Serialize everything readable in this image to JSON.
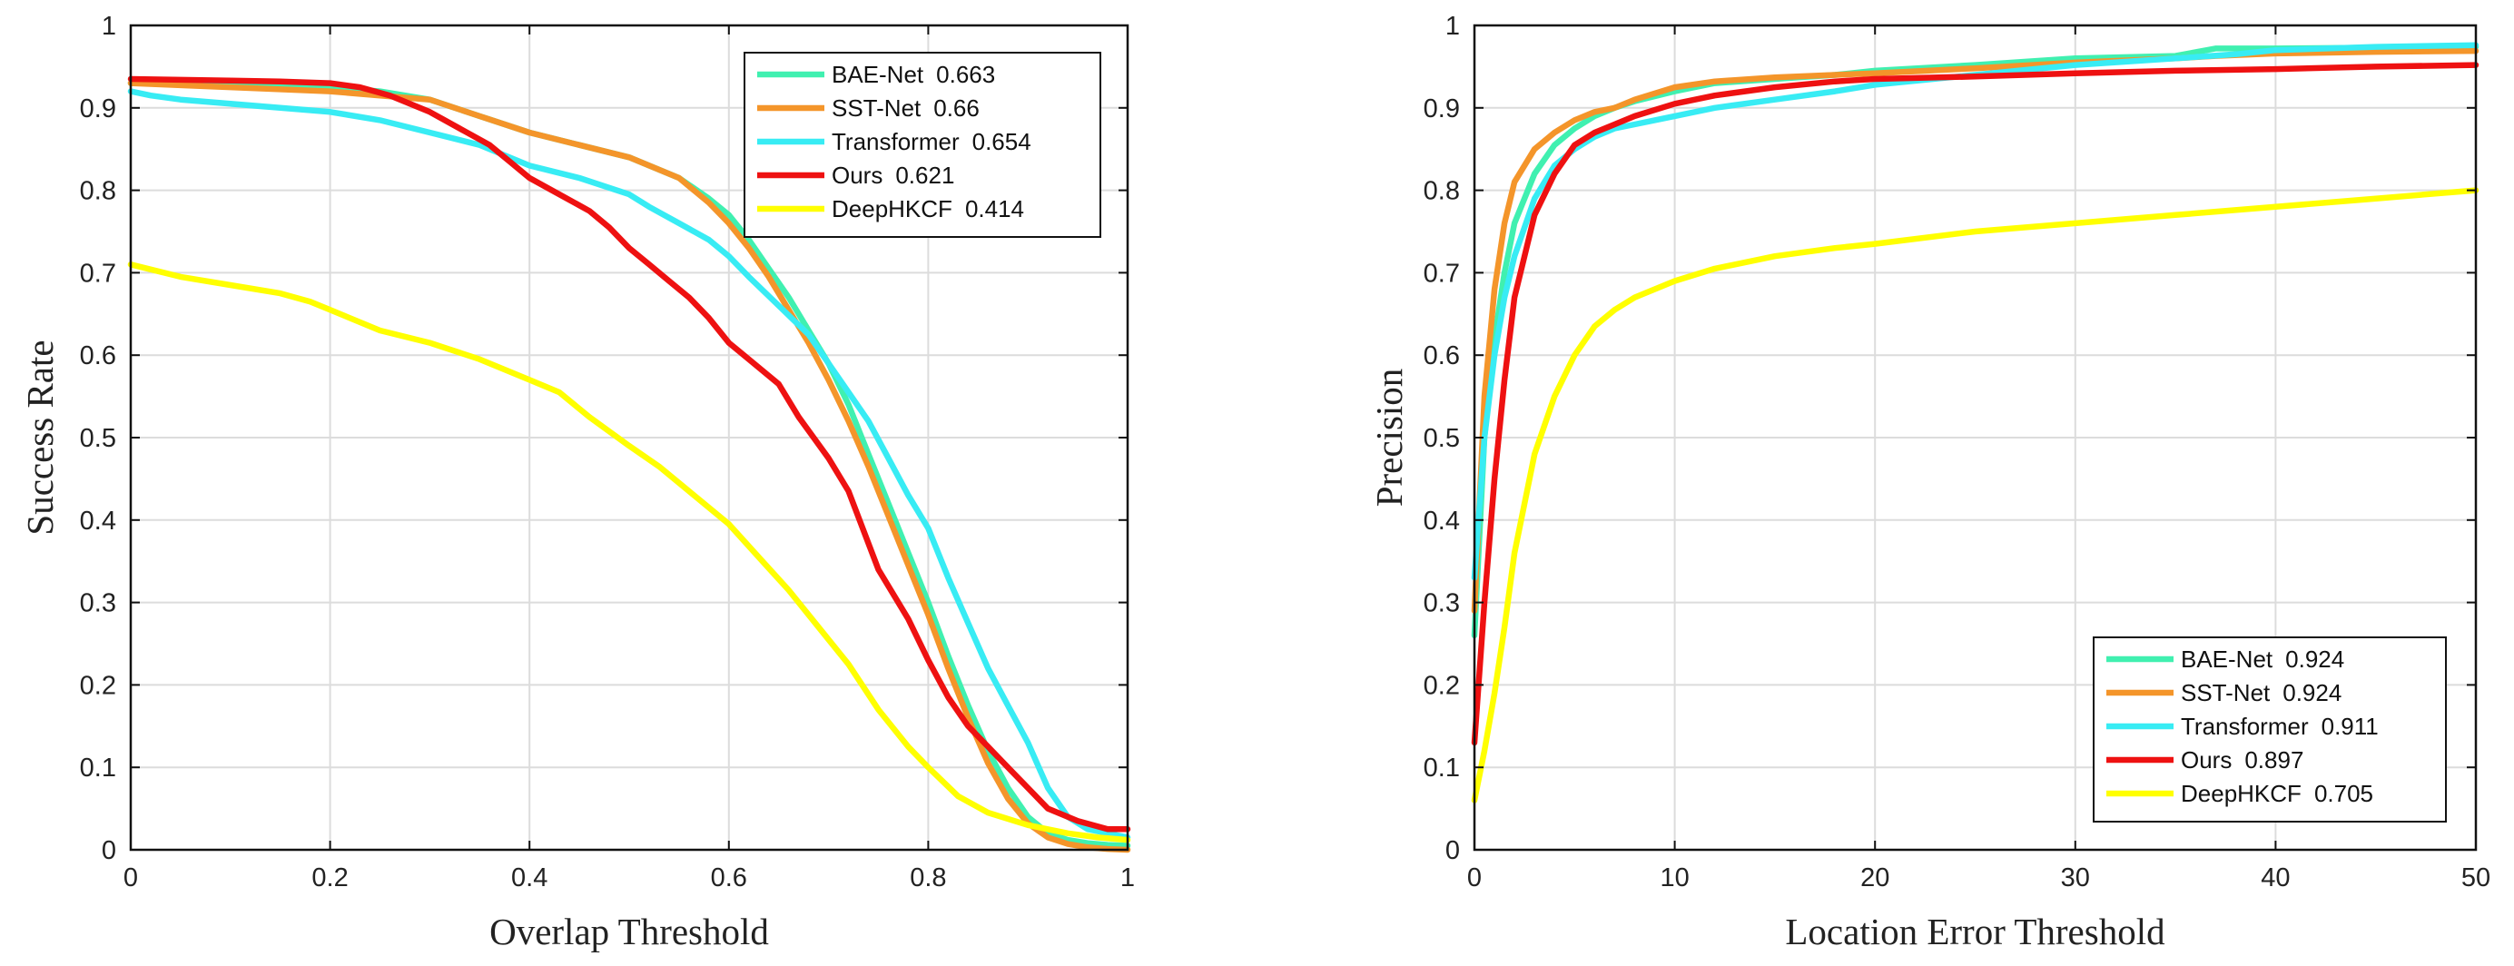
{
  "chart_data": [
    {
      "type": "line",
      "title": "",
      "xlabel": "Overlap Threshold",
      "ylabel": "Success Rate",
      "xlim": [
        0,
        1
      ],
      "ylim": [
        0,
        1
      ],
      "xticks": [
        0,
        0.2,
        0.4,
        0.6,
        0.8,
        1
      ],
      "xtick_labels": [
        "0",
        "0.2",
        "0.4",
        "0.6",
        "0.8",
        "1"
      ],
      "yticks": [
        0,
        0.1,
        0.2,
        0.3,
        0.4,
        0.5,
        0.6,
        0.7,
        0.8,
        0.9,
        1
      ],
      "ytick_labels": [
        "0",
        "0.1",
        "0.2",
        "0.3",
        "0.4",
        "0.5",
        "0.6",
        "0.7",
        "0.8",
        "0.9",
        "1"
      ],
      "grid": true,
      "legend_position": "top-right",
      "series": [
        {
          "name": "BAE-Net",
          "score": "0.663",
          "color": "#40f0b0",
          "x": [
            0,
            0.1,
            0.2,
            0.25,
            0.3,
            0.35,
            0.4,
            0.45,
            0.5,
            0.55,
            0.58,
            0.6,
            0.62,
            0.64,
            0.66,
            0.68,
            0.7,
            0.72,
            0.74,
            0.76,
            0.78,
            0.8,
            0.82,
            0.84,
            0.86,
            0.88,
            0.9,
            0.92,
            0.94,
            0.96,
            0.98,
            1
          ],
          "y": [
            0.93,
            0.93,
            0.925,
            0.92,
            0.91,
            0.89,
            0.87,
            0.855,
            0.84,
            0.815,
            0.79,
            0.77,
            0.74,
            0.705,
            0.67,
            0.63,
            0.59,
            0.54,
            0.48,
            0.42,
            0.36,
            0.3,
            0.235,
            0.175,
            0.12,
            0.075,
            0.04,
            0.02,
            0.012,
            0.008,
            0.006,
            0.005
          ]
        },
        {
          "name": "SST-Net",
          "score": "0.66",
          "color": "#f4952a",
          "x": [
            0,
            0.1,
            0.2,
            0.25,
            0.3,
            0.35,
            0.4,
            0.45,
            0.5,
            0.55,
            0.58,
            0.6,
            0.62,
            0.64,
            0.66,
            0.68,
            0.7,
            0.72,
            0.74,
            0.76,
            0.78,
            0.8,
            0.82,
            0.84,
            0.86,
            0.88,
            0.9,
            0.92,
            0.94,
            0.96,
            0.98,
            1
          ],
          "y": [
            0.93,
            0.925,
            0.92,
            0.915,
            0.91,
            0.89,
            0.87,
            0.855,
            0.84,
            0.815,
            0.785,
            0.76,
            0.73,
            0.695,
            0.655,
            0.615,
            0.57,
            0.52,
            0.465,
            0.405,
            0.345,
            0.285,
            0.22,
            0.16,
            0.105,
            0.062,
            0.032,
            0.015,
            0.007,
            0.003,
            0.001,
            0
          ]
        },
        {
          "name": "Transformer",
          "score": "0.654",
          "color": "#38ecf4",
          "x": [
            0,
            0.02,
            0.05,
            0.1,
            0.15,
            0.2,
            0.25,
            0.3,
            0.35,
            0.4,
            0.45,
            0.5,
            0.52,
            0.55,
            0.58,
            0.6,
            0.62,
            0.65,
            0.68,
            0.7,
            0.72,
            0.74,
            0.76,
            0.78,
            0.8,
            0.82,
            0.84,
            0.86,
            0.88,
            0.9,
            0.92,
            0.94,
            0.96,
            0.98,
            1
          ],
          "y": [
            0.92,
            0.915,
            0.91,
            0.905,
            0.9,
            0.895,
            0.885,
            0.87,
            0.855,
            0.83,
            0.815,
            0.795,
            0.78,
            0.76,
            0.74,
            0.72,
            0.695,
            0.66,
            0.625,
            0.59,
            0.555,
            0.52,
            0.475,
            0.43,
            0.39,
            0.33,
            0.275,
            0.22,
            0.175,
            0.13,
            0.075,
            0.04,
            0.025,
            0.02,
            0.015
          ]
        },
        {
          "name": "Ours",
          "score": "0.621",
          "color": "#ee1111",
          "x": [
            0,
            0.1,
            0.15,
            0.2,
            0.23,
            0.26,
            0.3,
            0.33,
            0.36,
            0.38,
            0.4,
            0.43,
            0.46,
            0.48,
            0.5,
            0.52,
            0.54,
            0.56,
            0.58,
            0.6,
            0.62,
            0.65,
            0.67,
            0.7,
            0.72,
            0.75,
            0.78,
            0.8,
            0.82,
            0.84,
            0.86,
            0.88,
            0.9,
            0.92,
            0.95,
            0.98,
            1
          ],
          "y": [
            0.935,
            0.933,
            0.932,
            0.93,
            0.925,
            0.915,
            0.895,
            0.875,
            0.855,
            0.835,
            0.815,
            0.795,
            0.775,
            0.755,
            0.73,
            0.71,
            0.69,
            0.67,
            0.645,
            0.615,
            0.595,
            0.565,
            0.525,
            0.475,
            0.435,
            0.34,
            0.28,
            0.23,
            0.185,
            0.15,
            0.125,
            0.1,
            0.075,
            0.05,
            0.035,
            0.025,
            0.025
          ]
        },
        {
          "name": "DeepHKCF",
          "score": "0.414",
          "color": "#ffff00",
          "x": [
            0,
            0.05,
            0.1,
            0.15,
            0.18,
            0.2,
            0.25,
            0.3,
            0.35,
            0.4,
            0.43,
            0.46,
            0.5,
            0.53,
            0.56,
            0.6,
            0.63,
            0.66,
            0.69,
            0.72,
            0.75,
            0.78,
            0.8,
            0.83,
            0.86,
            0.9,
            0.94,
            0.97,
            1
          ],
          "y": [
            0.71,
            0.695,
            0.685,
            0.675,
            0.665,
            0.655,
            0.63,
            0.615,
            0.595,
            0.57,
            0.555,
            0.525,
            0.49,
            0.465,
            0.435,
            0.395,
            0.355,
            0.315,
            0.27,
            0.225,
            0.17,
            0.125,
            0.1,
            0.065,
            0.045,
            0.03,
            0.02,
            0.015,
            0.012
          ]
        }
      ]
    },
    {
      "type": "line",
      "title": "",
      "xlabel": "Location Error Threshold",
      "ylabel": "Precision",
      "xlim": [
        0,
        50
      ],
      "ylim": [
        0,
        1
      ],
      "xticks": [
        0,
        10,
        20,
        30,
        40,
        50
      ],
      "xtick_labels": [
        "0",
        "10",
        "20",
        "30",
        "40",
        "50"
      ],
      "yticks": [
        0,
        0.1,
        0.2,
        0.3,
        0.4,
        0.5,
        0.6,
        0.7,
        0.8,
        0.9,
        1
      ],
      "ytick_labels": [
        "0",
        "0.1",
        "0.2",
        "0.3",
        "0.4",
        "0.5",
        "0.6",
        "0.7",
        "0.8",
        "0.9",
        "1"
      ],
      "grid": true,
      "legend_position": "bottom-right",
      "series": [
        {
          "name": "BAE-Net",
          "score": "0.924",
          "color": "#40f0b0",
          "x": [
            0,
            0.5,
            1,
            1.5,
            2,
            3,
            4,
            5,
            6,
            7,
            8,
            10,
            12,
            15,
            18,
            20,
            25,
            30,
            35,
            37,
            40,
            45,
            50
          ],
          "y": [
            0.26,
            0.5,
            0.62,
            0.7,
            0.76,
            0.82,
            0.855,
            0.875,
            0.89,
            0.9,
            0.908,
            0.92,
            0.93,
            0.935,
            0.94,
            0.945,
            0.952,
            0.96,
            0.963,
            0.972,
            0.972,
            0.973,
            0.974
          ]
        },
        {
          "name": "SST-Net",
          "score": "0.924",
          "color": "#f4952a",
          "x": [
            0,
            0.5,
            1,
            1.5,
            2,
            3,
            4,
            5,
            6,
            7,
            8,
            10,
            12,
            15,
            18,
            20,
            25,
            30,
            35,
            37,
            40,
            45,
            50
          ],
          "y": [
            0.29,
            0.55,
            0.68,
            0.76,
            0.81,
            0.85,
            0.87,
            0.885,
            0.895,
            0.9,
            0.91,
            0.925,
            0.932,
            0.937,
            0.94,
            0.942,
            0.948,
            0.955,
            0.96,
            0.963,
            0.966,
            0.968,
            0.969
          ]
        },
        {
          "name": "Transformer",
          "score": "0.911",
          "color": "#38ecf4",
          "x": [
            0,
            0.5,
            1,
            1.5,
            2,
            3,
            4,
            5,
            6,
            7,
            8,
            10,
            12,
            15,
            18,
            20,
            25,
            30,
            35,
            38,
            40,
            45,
            50
          ],
          "y": [
            0.33,
            0.5,
            0.6,
            0.67,
            0.72,
            0.79,
            0.83,
            0.85,
            0.865,
            0.875,
            0.88,
            0.89,
            0.9,
            0.91,
            0.92,
            0.928,
            0.94,
            0.952,
            0.96,
            0.965,
            0.97,
            0.974,
            0.976
          ]
        },
        {
          "name": "Ours",
          "score": "0.897",
          "color": "#ee1111",
          "x": [
            0,
            0.5,
            1,
            1.5,
            2,
            3,
            4,
            5,
            6,
            7,
            8,
            10,
            12,
            15,
            18,
            20,
            25,
            30,
            35,
            40,
            45,
            50
          ],
          "y": [
            0.13,
            0.3,
            0.45,
            0.57,
            0.67,
            0.77,
            0.82,
            0.855,
            0.87,
            0.88,
            0.89,
            0.905,
            0.915,
            0.925,
            0.932,
            0.935,
            0.938,
            0.942,
            0.945,
            0.947,
            0.95,
            0.952
          ]
        },
        {
          "name": "DeepHKCF",
          "score": "0.705",
          "color": "#ffff00",
          "x": [
            0,
            0.5,
            1,
            1.5,
            2,
            3,
            4,
            5,
            6,
            7,
            8,
            10,
            12,
            15,
            18,
            20,
            25,
            30,
            35,
            40,
            45,
            50
          ],
          "y": [
            0.06,
            0.12,
            0.19,
            0.27,
            0.36,
            0.48,
            0.55,
            0.6,
            0.635,
            0.655,
            0.67,
            0.69,
            0.705,
            0.72,
            0.73,
            0.735,
            0.75,
            0.76,
            0.77,
            0.78,
            0.79,
            0.8
          ]
        }
      ]
    }
  ]
}
